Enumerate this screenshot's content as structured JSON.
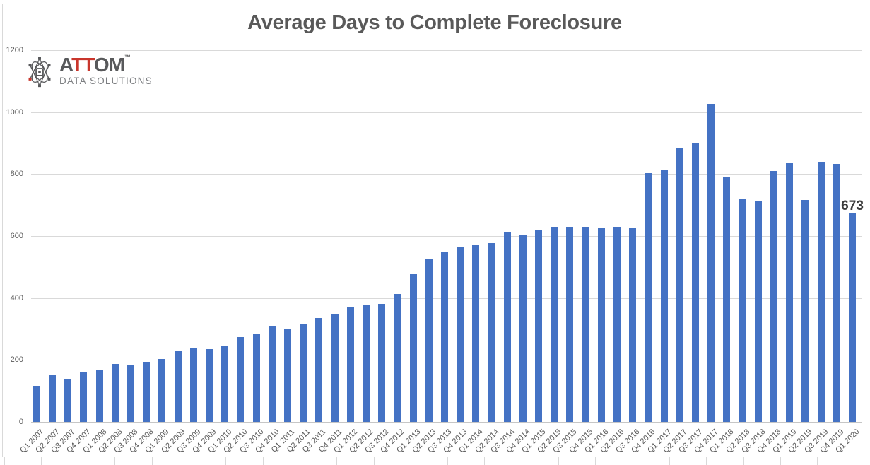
{
  "title_block": {
    "title": "Average Days to Complete Foreclosure"
  },
  "logo": {
    "icon": "atom-icon",
    "word_gray1": "A",
    "word_red": "TT",
    "word_gray2": "OM",
    "trademark": "™",
    "subtitle": "DATA SOLUTIONS"
  },
  "colors": {
    "bar": "#4472c4",
    "gridline": "#d9d9d9",
    "axis_line": "#c6c6c6",
    "axis_text": "#595959",
    "title_text": "#595959",
    "data_label_text": "#3b3b3b",
    "logo_gray": "#58595b",
    "logo_red": "#c9362c",
    "logo_subtitle_gray": "#7d7f82"
  },
  "chart_data": {
    "type": "bar",
    "title": "Average Days to Complete Foreclosure",
    "xlabel": "",
    "ylabel": "",
    "ylim": [
      0,
      1200
    ],
    "yticks": [
      0,
      200,
      400,
      600,
      800,
      1000,
      1200
    ],
    "grid": true,
    "legend": "none",
    "bar_color": "#4472c4",
    "categories": [
      "Q1 2007",
      "Q2 2007",
      "Q3 2007",
      "Q4 2007",
      "Q1 2008",
      "Q2 2008",
      "Q3 2008",
      "Q4 2008",
      "Q1 2009",
      "Q2 2009",
      "Q3 2009",
      "Q4 2009",
      "Q1 2010",
      "Q2 2010",
      "Q3 2010",
      "Q4 2010",
      "Q1 2011",
      "Q2 2011",
      "Q3 2011",
      "Q4 2011",
      "Q1 2012",
      "Q2 2012",
      "Q3 2012",
      "Q4 2012",
      "Q1 2013",
      "Q2 2013",
      "Q3 2013",
      "Q4 2013",
      "Q1 2014",
      "Q2 2014",
      "Q3 2014",
      "Q4 2014",
      "Q1 2015",
      "Q2 2015",
      "Q3 2015",
      "Q4 2015",
      "Q1 2016",
      "Q2 2016",
      "Q3 2016",
      "Q4 2016",
      "Q1 2017",
      "Q2 2017",
      "Q3 2017",
      "Q4 2017",
      "Q1 2018",
      "Q2 2018",
      "Q3 2018",
      "Q4 2018",
      "Q1 2019",
      "Q2 2019",
      "Q3 2019",
      "Q4 2019",
      "Q1 2020"
    ],
    "values": [
      117,
      153,
      139,
      159,
      170,
      188,
      182,
      193,
      204,
      228,
      237,
      236,
      247,
      275,
      282,
      307,
      298,
      318,
      336,
      348,
      370,
      378,
      382,
      414,
      477,
      526,
      551,
      564,
      572,
      577,
      615,
      604,
      620,
      629,
      630,
      629,
      625,
      631,
      625,
      803,
      814,
      883,
      899,
      1027,
      791,
      720,
      713,
      811,
      835,
      716,
      841,
      834,
      673
    ],
    "last_point_label": "673"
  }
}
